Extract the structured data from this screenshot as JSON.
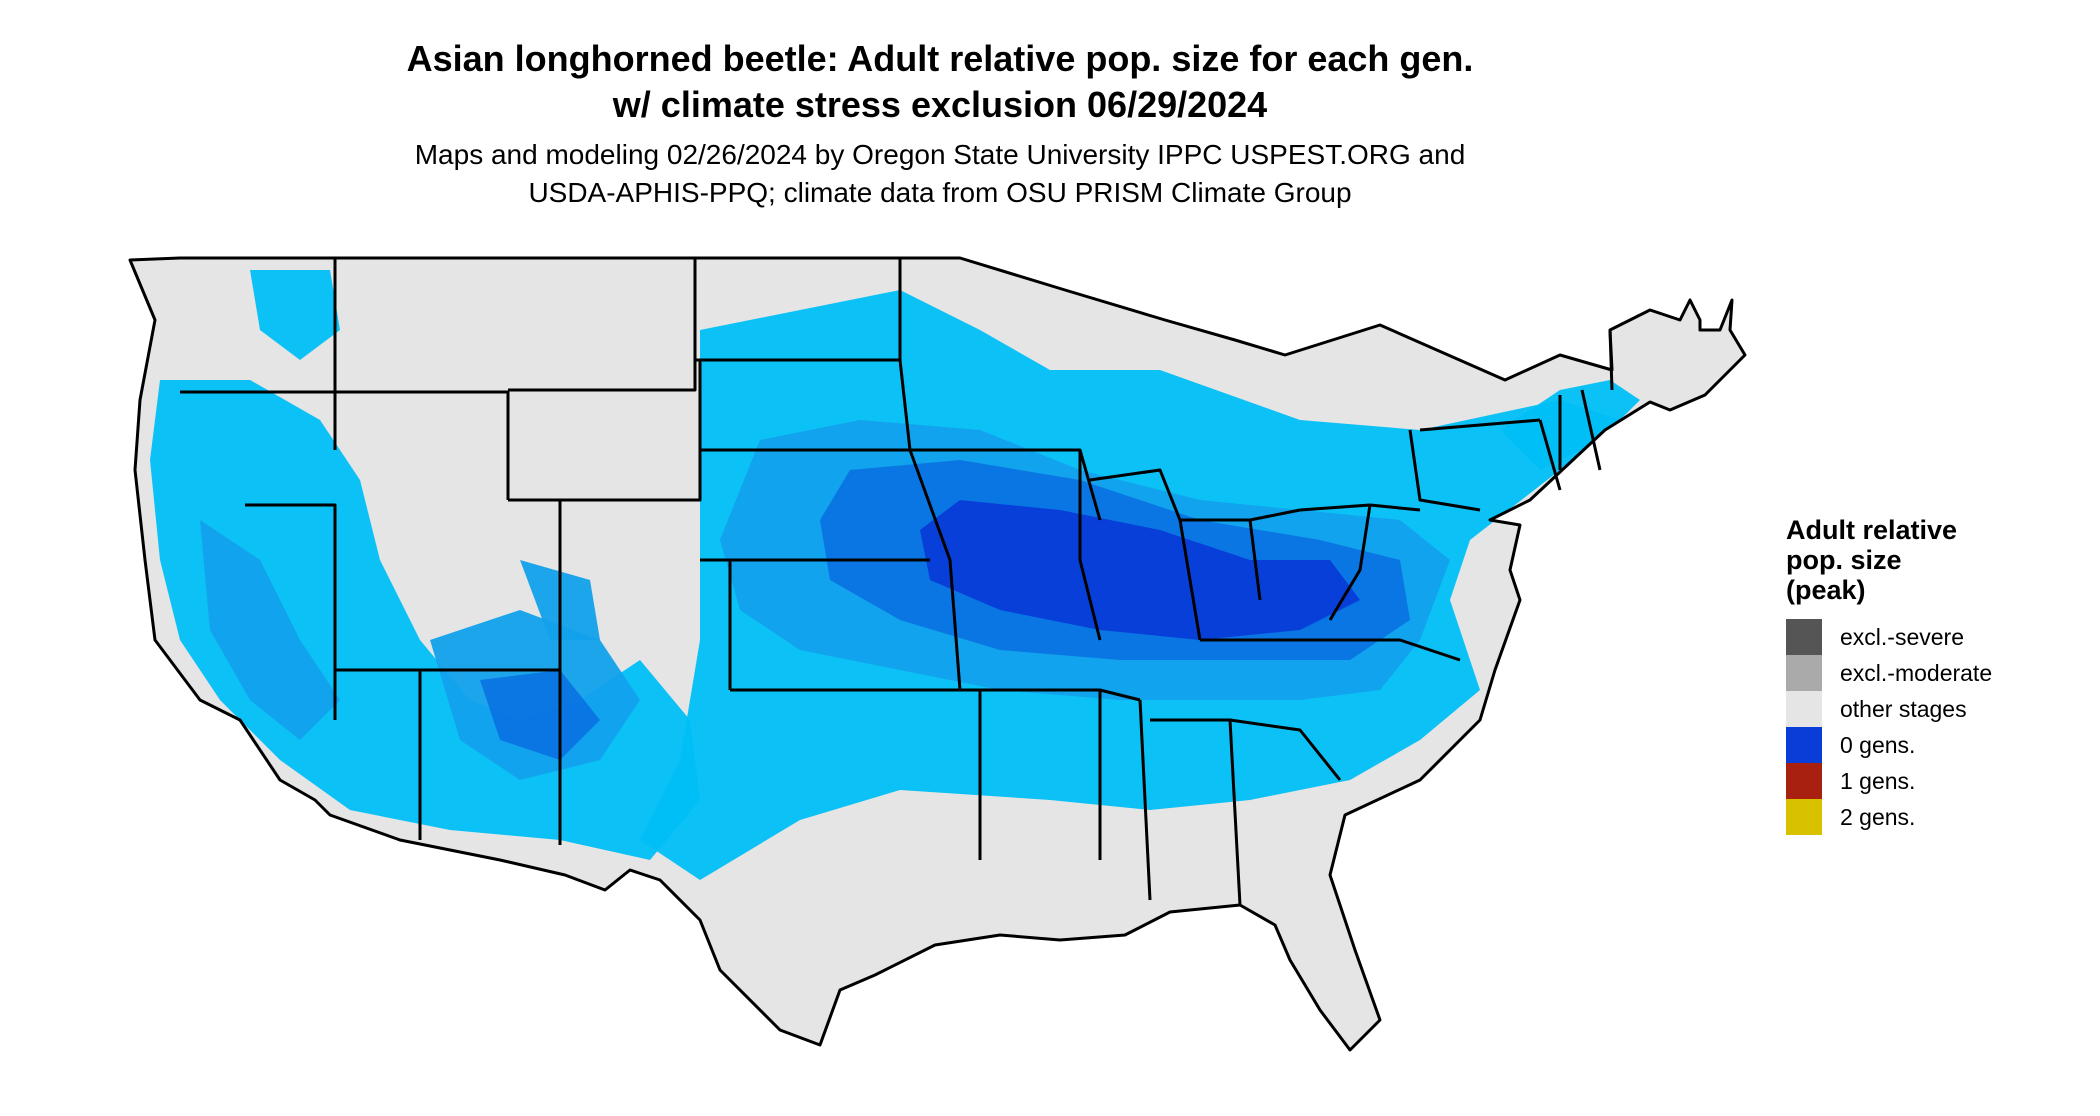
{
  "title": {
    "line1": "Asian longhorned beetle: Adult relative pop. size for each gen.",
    "line2": "w/ climate stress exclusion 06/29/2024"
  },
  "subtitle": {
    "line1": "Maps and modeling 02/26/2024 by Oregon State University IPPC USPEST.ORG and",
    "line2": "USDA-APHIS-PPQ; climate data from OSU PRISM Climate Group"
  },
  "legend": {
    "title_line1": "Adult relative",
    "title_line2": "pop. size",
    "title_line3": "(peak)",
    "items": [
      {
        "label": "excl.-severe",
        "color": "#555555"
      },
      {
        "label": "excl.-moderate",
        "color": "#aaaaaa"
      },
      {
        "label": "other stages",
        "color": "#e5e5e5"
      },
      {
        "label": "0 gens.",
        "color": "#0a3cd8"
      },
      {
        "label": "1 gens.",
        "color": "#a8200f"
      },
      {
        "label": "2 gens.",
        "color": "#d8c200"
      }
    ]
  },
  "map": {
    "base_color": "#e5e5e5",
    "border_color": "#000000",
    "shade_colors": [
      "#00bff5",
      "#12a1ec",
      "#0b74e3",
      "#0a3cd8"
    ]
  }
}
